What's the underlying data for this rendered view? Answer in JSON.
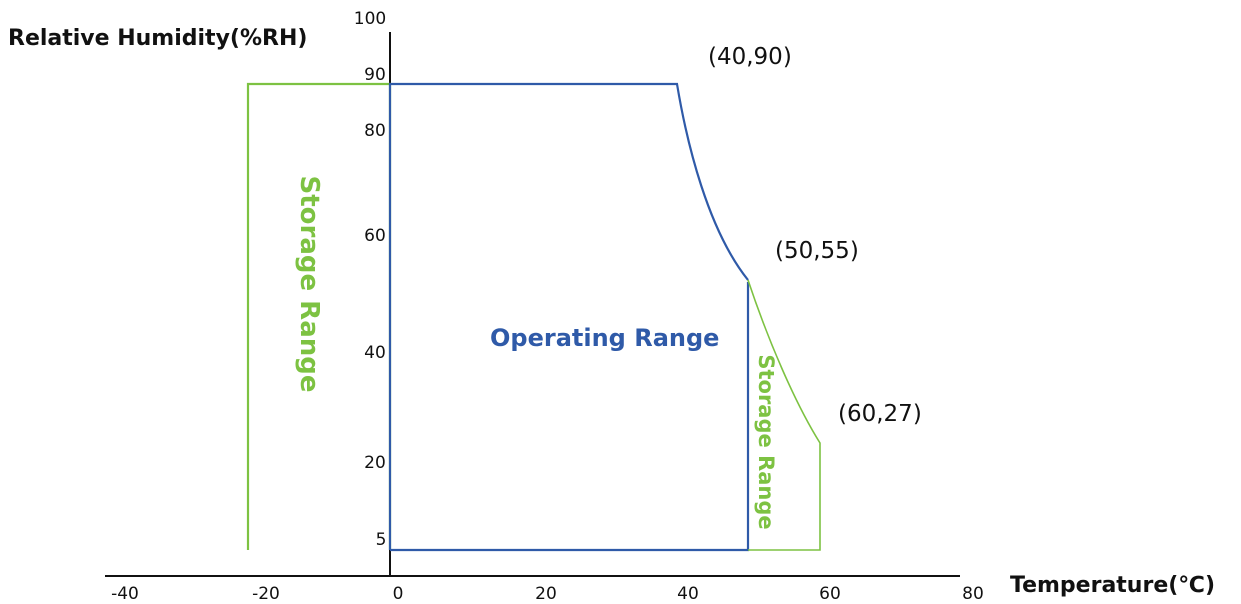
{
  "chart_data": {
    "type": "area",
    "xlabel": "Temperature(℃)",
    "ylabel": "Relative Humidity(%RH)",
    "x_ticks": [
      "-40",
      "-20",
      "0",
      "20",
      "40",
      "60",
      "80"
    ],
    "y_ticks": [
      "5",
      "20",
      "40",
      "60",
      "80",
      "90",
      "100"
    ],
    "xlim": [
      -40,
      80
    ],
    "ylim": [
      0,
      100
    ],
    "regions": [
      {
        "name": "Storage Range",
        "color": "#7dc242",
        "points": [
          [
            -20,
            5
          ],
          [
            -20,
            90
          ],
          [
            0,
            90
          ],
          [
            0,
            5
          ]
        ]
      },
      {
        "name": "Operating Range",
        "color": "#2f5aa8",
        "points": [
          [
            0,
            5
          ],
          [
            0,
            90
          ],
          [
            40,
            90
          ],
          [
            50,
            55
          ],
          [
            50,
            5
          ]
        ]
      },
      {
        "name": "Storage Range",
        "color": "#7dc242",
        "points": [
          [
            50,
            5
          ],
          [
            50,
            55
          ],
          [
            60,
            27
          ],
          [
            60,
            5
          ]
        ]
      }
    ],
    "annotations": [
      "(40,90)",
      "(50,55)",
      "(60,27)"
    ]
  },
  "labels": {
    "operating": "Operating Range",
    "storage_left": "Storage Range",
    "storage_right": "Storage Range"
  },
  "colors": {
    "operating": "#2f5aa8",
    "storage": "#7dc242",
    "axis": "#111111"
  }
}
